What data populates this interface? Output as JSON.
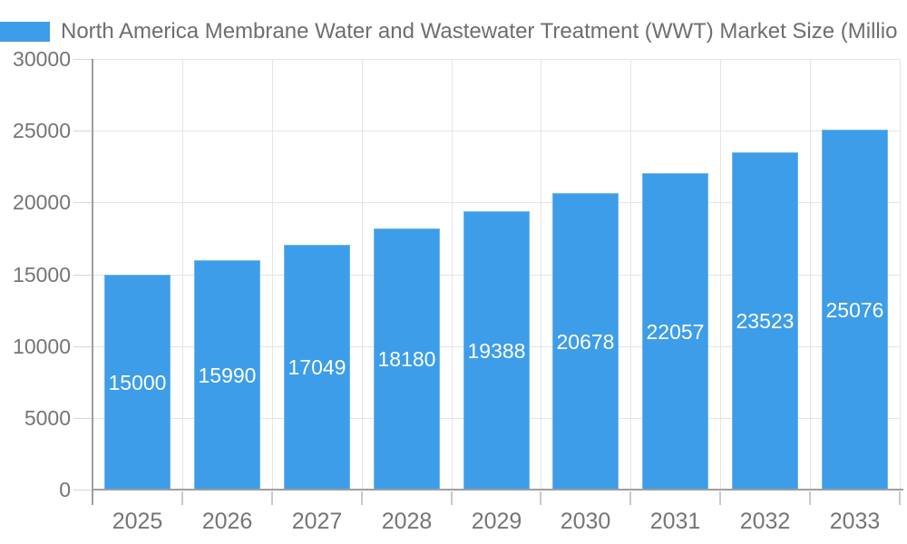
{
  "legend": {
    "swatch_color": "#3d9de9",
    "position": "top-left"
  },
  "colors": {
    "bar_fill": "#3d9de9",
    "gridline": "#e4e4e4",
    "axis_line": "#9e9e9e",
    "axis_label_text": "#757575",
    "title_text": "#6e6e6e",
    "bar_value_text": "#ffffff",
    "background": "#ffffff"
  },
  "chart_data": {
    "type": "bar",
    "title": "North America Membrane Water and Wastewater Treatment (WWT) Market Size (Millio",
    "categories": [
      "2025",
      "2026",
      "2027",
      "2028",
      "2029",
      "2030",
      "2031",
      "2032",
      "2033"
    ],
    "values": [
      15000,
      15990,
      17049,
      18180,
      19388,
      20678,
      22057,
      23523,
      25076
    ],
    "series_color": "#3d9de9",
    "xlabel": "",
    "ylabel": "",
    "ylim": [
      0,
      30000
    ],
    "yticks": [
      0,
      5000,
      10000,
      15000,
      20000,
      25000,
      30000
    ],
    "grid": true,
    "legend_position": "top-left",
    "value_labels": "inside-center-white"
  }
}
